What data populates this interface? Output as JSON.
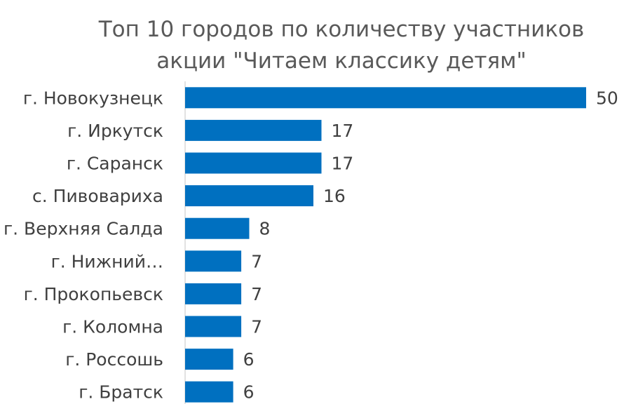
{
  "chart_data": {
    "type": "bar",
    "orientation": "horizontal",
    "title": "Топ 10 городов по количеству участников акции \"Читаем классику детям\"",
    "title_lines": [
      "Топ 10 городов по количеству участников",
      "акции \"Читаем классику детям\""
    ],
    "categories": [
      "г. Новокузнецк",
      "г. Иркутск",
      "г. Саранск",
      "с. Пивовариха",
      "г. Верхняя Салда",
      "г. Нижний…",
      "г. Прокопьевск",
      "г. Коломна",
      "г. Россошь",
      "г. Братск"
    ],
    "values": [
      50,
      17,
      17,
      16,
      8,
      7,
      7,
      7,
      6,
      6
    ],
    "data_labels": [
      "50",
      "17",
      "17",
      "16",
      "8",
      "7",
      "7",
      "7",
      "6",
      "6"
    ],
    "bar_color": "#0070C0",
    "xlabel": "",
    "ylabel": "",
    "xlim": [
      0,
      50
    ],
    "grid": false,
    "legend": "none"
  }
}
